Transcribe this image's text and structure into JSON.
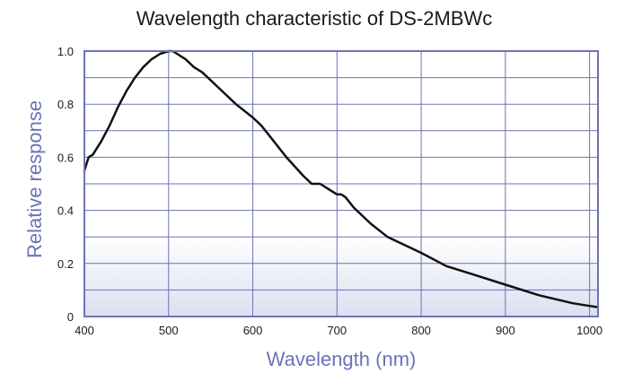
{
  "chart_data": {
    "type": "line",
    "title": "Wavelength characteristic of DS-2MBWc",
    "xlabel": "Wavelength (nm)",
    "ylabel": "Relative response",
    "xlim": [
      400,
      1010
    ],
    "ylim": [
      0,
      1.0
    ],
    "x_ticks": [
      400,
      500,
      600,
      700,
      800,
      900,
      1000
    ],
    "y_ticks": [
      0,
      0.2,
      0.4,
      0.6,
      0.8,
      1.0
    ],
    "x_tick_labels": [
      "400",
      "500",
      "600",
      "700",
      "800",
      "900",
      "1000"
    ],
    "y_tick_labels": [
      "0",
      "0.2",
      "0.4",
      "0.6",
      "0.8",
      "1.0"
    ],
    "grid": true,
    "colors": {
      "frame": "#6c72b8",
      "grid": "#6c72b8",
      "line": "#111111",
      "background_top": "#ffffff",
      "background_bottom": "#dcdff0",
      "axis_label": "#6c72b8"
    },
    "series": [
      {
        "x": [
          400,
          405,
          410,
          420,
          430,
          440,
          450,
          460,
          470,
          480,
          490,
          500,
          505,
          510,
          520,
          530,
          540,
          560,
          580,
          600,
          610,
          620,
          640,
          660,
          670,
          680,
          690,
          700,
          705,
          710,
          720,
          740,
          760,
          780,
          800,
          830,
          860,
          900,
          940,
          980,
          1000,
          1010
        ],
        "y": [
          0.55,
          0.6,
          0.61,
          0.66,
          0.72,
          0.79,
          0.85,
          0.9,
          0.94,
          0.97,
          0.99,
          1.0,
          1.0,
          0.99,
          0.97,
          0.94,
          0.92,
          0.86,
          0.8,
          0.75,
          0.72,
          0.68,
          0.6,
          0.53,
          0.5,
          0.5,
          0.48,
          0.46,
          0.46,
          0.45,
          0.41,
          0.35,
          0.3,
          0.27,
          0.24,
          0.19,
          0.16,
          0.12,
          0.08,
          0.05,
          0.04,
          0.035
        ]
      }
    ]
  }
}
